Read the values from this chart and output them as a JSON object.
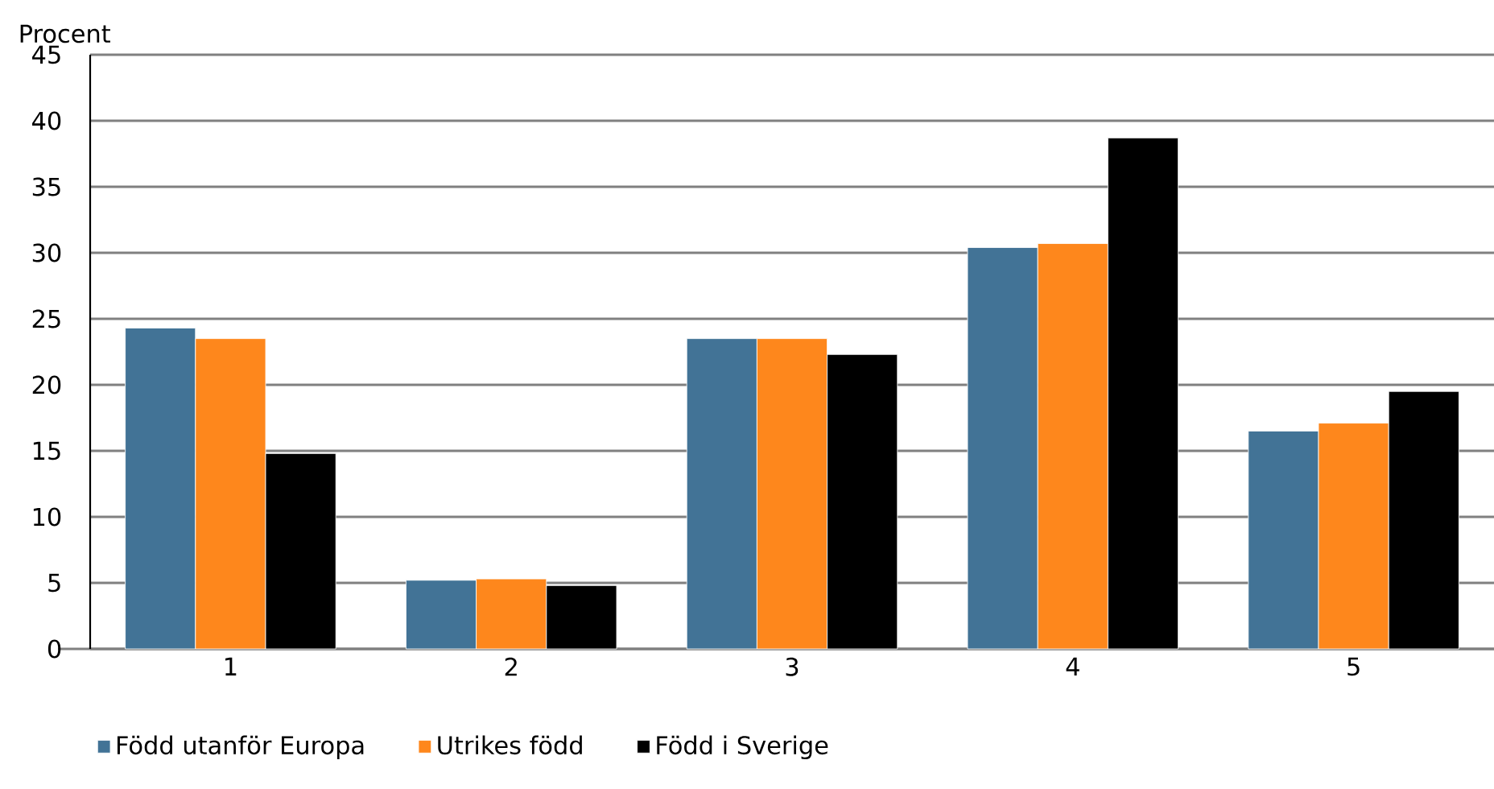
{
  "chart_data": {
    "type": "bar",
    "ylabel": "Procent",
    "categories": [
      "1",
      "2",
      "3",
      "4",
      "5"
    ],
    "series": [
      {
        "name": "Född utanför Europa",
        "color": "#427396",
        "values": [
          24.3,
          5.2,
          23.5,
          30.4,
          16.5
        ]
      },
      {
        "name": "Utrikes född",
        "color": "#fe871c",
        "values": [
          23.5,
          5.3,
          23.5,
          30.7,
          17.1
        ]
      },
      {
        "name": "Född i Sverige",
        "color": "#000000",
        "values": [
          14.8,
          4.8,
          22.3,
          38.7,
          19.5
        ]
      }
    ],
    "ylim": [
      0,
      45
    ],
    "yticks": [
      0,
      5,
      10,
      15,
      20,
      25,
      30,
      35,
      40,
      45
    ],
    "grid": "y",
    "legend": "bottom left"
  }
}
